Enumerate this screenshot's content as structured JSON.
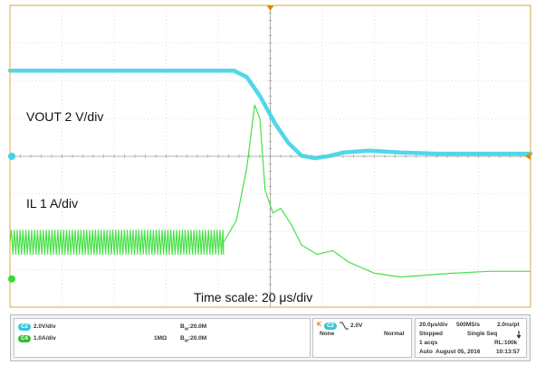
{
  "chart_data": {
    "type": "line",
    "title": "",
    "xlabel": "",
    "ylabel": "",
    "grid": true,
    "x_divisions": 10,
    "y_divisions": 8,
    "xlim": [
      0,
      10
    ],
    "ylim": [
      -4,
      4
    ],
    "series": [
      {
        "name": "VOUT 2 V/div",
        "color": "#3fd3e6",
        "points": [
          [
            0,
            2.27
          ],
          [
            4.3,
            2.27
          ],
          [
            4.55,
            2.1
          ],
          [
            4.8,
            1.6
          ],
          [
            5.1,
            0.85
          ],
          [
            5.35,
            0.35
          ],
          [
            5.6,
            0.02
          ],
          [
            5.85,
            -0.05
          ],
          [
            6.1,
            0.0
          ],
          [
            6.4,
            0.1
          ],
          [
            6.9,
            0.15
          ],
          [
            7.5,
            0.1
          ],
          [
            8.2,
            0.07
          ],
          [
            9,
            0.07
          ],
          [
            10,
            0.07
          ]
        ]
      },
      {
        "name": "IL 1 A/div",
        "color": "#33dd33",
        "ripple": {
          "x_end": 4.1,
          "center": -2.28,
          "amplitude": 0.32
        },
        "points": [
          [
            4.1,
            -2.28
          ],
          [
            4.35,
            -1.7
          ],
          [
            4.55,
            -0.3
          ],
          [
            4.7,
            1.36
          ],
          [
            4.8,
            1.0
          ],
          [
            4.9,
            -0.9
          ],
          [
            5.05,
            -1.5
          ],
          [
            5.2,
            -1.38
          ],
          [
            5.4,
            -1.8
          ],
          [
            5.6,
            -2.35
          ],
          [
            5.9,
            -2.6
          ],
          [
            6.2,
            -2.5
          ],
          [
            6.5,
            -2.8
          ],
          [
            7.0,
            -3.1
          ],
          [
            7.5,
            -3.2
          ],
          [
            8.5,
            -3.1
          ],
          [
            9.2,
            -3.05
          ],
          [
            10,
            -3.05
          ]
        ]
      }
    ],
    "annotations": [
      "VOUT 2 V/div",
      "IL 1 A/div",
      "Time scale: 20 μs/div"
    ]
  },
  "status_panel": {
    "ch2": {
      "badge": "C2",
      "scale": "2.0V/div",
      "bw": "B",
      "bw_sub": "W",
      "bw_value": ":20.0M",
      "color": "#37c6d8"
    },
    "ch4": {
      "badge": "C4",
      "scale": "1.0A/div",
      "impedance": "1MΩ",
      "bw": "B",
      "bw_sub": "W",
      "bw_value": ":20.0M",
      "color": "#2fbf2f"
    },
    "trigger": {
      "badge": "C2",
      "level": "2.0V",
      "coupling": "None",
      "mode": "Normal"
    },
    "acquisition": {
      "timebase": "20.0μs/div",
      "sample_rate": "500MS/s",
      "resolution": "2.0ns/pt",
      "state": "Stopped",
      "sequence": "Single Seq",
      "acqs": "1 acqs",
      "record_length": "RL:100k",
      "mode": "Auto",
      "date": "August 05, 2016",
      "time": "10:13:57"
    }
  }
}
